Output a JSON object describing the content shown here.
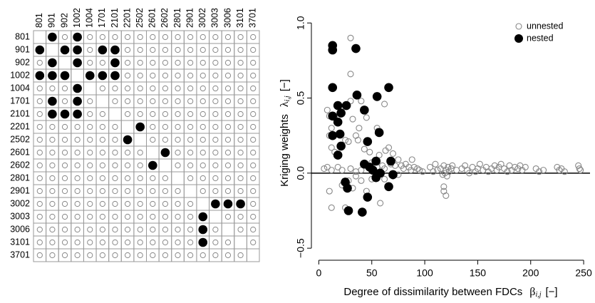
{
  "chart_data": [
    {
      "type": "matrix",
      "labels": [
        "801",
        "901",
        "902",
        "1002",
        "1004",
        "1701",
        "2101",
        "2201",
        "2502",
        "2601",
        "2602",
        "2801",
        "2901",
        "3002",
        "3003",
        "3006",
        "3101",
        "3701"
      ],
      "nested_pairs": [
        [
          "801",
          "901"
        ],
        [
          "801",
          "1002"
        ],
        [
          "901",
          "902"
        ],
        [
          "901",
          "1002"
        ],
        [
          "901",
          "1701"
        ],
        [
          "901",
          "2101"
        ],
        [
          "902",
          "1002"
        ],
        [
          "902",
          "2101"
        ],
        [
          "1002",
          "1004"
        ],
        [
          "1002",
          "1701"
        ],
        [
          "1002",
          "2101"
        ],
        [
          "2201",
          "2502"
        ],
        [
          "2601",
          "2602"
        ],
        [
          "3002",
          "3003"
        ],
        [
          "3002",
          "3006"
        ],
        [
          "3002",
          "3101"
        ]
      ],
      "open_color": "#888888",
      "filled_color": "#000000",
      "grid_color": "#999999"
    },
    {
      "type": "scatter",
      "x_label": "Degree of dissimilarity between FDCs",
      "x_label_symbol": "β",
      "x_label_sub": "i,j",
      "x_label_unit": "[−]",
      "y_label": "Kriging weights",
      "y_label_symbol": "λ",
      "y_label_sub": "i,j",
      "y_label_unit": "[−]",
      "xlim": [
        -7,
        256
      ],
      "xticks": [
        0,
        50,
        100,
        150,
        200,
        250
      ],
      "ylim": [
        -0.58,
        1.02
      ],
      "yticks": [
        {
          "value": -0.5,
          "label": "−0.5"
        },
        {
          "value": 0,
          "label": "0.0"
        },
        0.5,
        {
          "value": 1,
          "label": "1.0"
        }
      ],
      "reference_line": 0,
      "legend": "top-right",
      "series": [
        {
          "name": "unnested",
          "color": "#888888",
          "filled": false,
          "x": [
            30,
            30,
            8,
            10,
            15,
            12,
            10,
            22,
            30,
            40,
            45,
            62,
            55,
            56,
            38,
            32,
            12,
            15,
            25,
            28,
            35,
            37,
            43,
            48,
            57,
            63,
            66,
            70,
            60,
            8,
            5,
            12,
            18,
            22,
            30,
            35,
            40,
            45,
            50,
            55,
            62,
            68,
            72,
            75,
            78,
            80,
            82,
            85,
            87,
            88,
            90,
            93,
            95,
            98,
            10,
            12,
            22,
            28,
            32,
            40,
            45,
            50,
            58,
            62,
            70,
            75,
            25,
            35,
            105,
            108,
            110,
            112,
            115,
            117,
            118,
            119,
            120,
            121,
            122,
            123,
            125,
            126,
            118,
            120,
            118,
            130,
            135,
            138,
            140,
            142,
            145,
            148,
            150,
            152,
            155,
            158,
            160,
            163,
            166,
            168,
            170,
            172,
            175,
            178,
            180,
            182,
            185,
            188,
            190,
            192,
            195,
            205,
            208,
            212,
            225,
            227,
            229,
            232,
            245,
            247,
            246
          ],
          "values": [
            0.9,
            0.66,
            0.42,
            0.38,
            0.38,
            0.3,
            0.25,
            0.4,
            0.48,
            0.48,
            0.37,
            0.46,
            0.3,
            0.28,
            0.3,
            0.36,
            0.17,
            0.14,
            0.22,
            0.21,
            0.25,
            0.22,
            0.16,
            0.14,
            0.12,
            0.15,
            0.17,
            0.13,
            0.05,
            0.04,
            0.03,
            0.02,
            0.04,
            0.02,
            0.03,
            0.01,
            0.02,
            0.05,
            0.07,
            0.04,
            0.03,
            0.06,
            0.05,
            0.09,
            0.05,
            0.03,
            0.06,
            0.04,
            0.02,
            0.09,
            0.04,
            0.03,
            0.02,
            0.01,
            -0.12,
            -0.23,
            -0.08,
            -0.05,
            -0.1,
            -0.05,
            -0.12,
            -0.04,
            -0.2,
            -0.04,
            -0.02,
            -0.01,
            -0.23,
            -0.02,
            0.04,
            0.01,
            0.06,
            0.02,
            0.03,
            -0.01,
            0.05,
            0.0,
            0.02,
            -0.02,
            0.04,
            0.01,
            0.03,
            0.05,
            -0.12,
            -0.15,
            -0.09,
            0.02,
            0.03,
            0.05,
            0.02,
            0.0,
            0.04,
            0.01,
            0.03,
            0.06,
            0.02,
            0.04,
            0.01,
            0.03,
            0.05,
            0.02,
            0.04,
            0.06,
            0.03,
            0.01,
            0.05,
            0.02,
            0.04,
            0.03,
            0.05,
            0.02,
            0.04,
            0.03,
            0.01,
            0.02,
            0.04,
            0.02,
            0.03,
            0.01,
            0.05,
            0.02,
            0.03
          ]
        },
        {
          "name": "nested",
          "color": "#000000",
          "filled": true,
          "x": [
            13,
            13,
            35,
            13,
            66,
            18,
            26,
            36,
            55,
            21,
            43,
            13,
            18,
            20,
            13,
            57,
            46,
            21,
            18,
            68,
            43,
            54,
            48,
            51,
            58,
            70,
            54,
            25,
            27,
            66,
            46,
            28,
            41
          ],
          "values": [
            0.85,
            0.82,
            0.83,
            0.57,
            0.57,
            0.45,
            0.45,
            0.52,
            0.51,
            0.4,
            0.42,
            0.38,
            0.34,
            0.26,
            0.25,
            0.27,
            0.21,
            0.18,
            0.12,
            0.08,
            0.06,
            0.08,
            0.04,
            0.02,
            0.0,
            -0.01,
            -0.03,
            -0.06,
            -0.1,
            -0.09,
            -0.16,
            -0.25,
            -0.26
          ]
        }
      ]
    }
  ]
}
